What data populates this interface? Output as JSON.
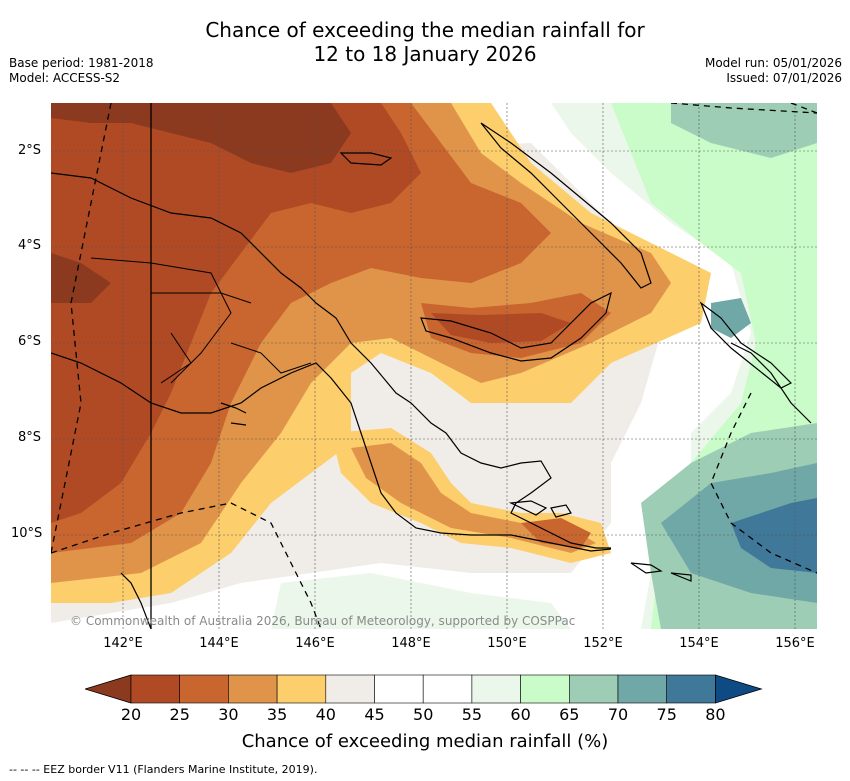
{
  "title": {
    "line1": "Chance of exceeding the median rainfall for",
    "line2": "12 to 18 January 2026"
  },
  "meta": {
    "base_period": "Base period: 1981-2018",
    "model": "Model: ACCESS-S2",
    "model_run": "Model run: 05/01/2026",
    "issued": "Issued: 07/01/2026"
  },
  "axes": {
    "lat_labels": [
      "2°S",
      "4°S",
      "6°S",
      "8°S",
      "10°S"
    ],
    "lon_labels": [
      "142°E",
      "144°E",
      "146°E",
      "148°E",
      "150°E",
      "152°E",
      "154°E",
      "156°E"
    ]
  },
  "copyright": "© Commonwealth of Australia 2026, Bureau of Meteorology, supported by COSPPac",
  "colorbar": {
    "ticks": [
      "20",
      "25",
      "30",
      "35",
      "40",
      "45",
      "50",
      "55",
      "60",
      "65",
      "70",
      "75",
      "80"
    ],
    "colors": [
      "#8b3a1f",
      "#b04a25",
      "#c9652f",
      "#e0944a",
      "#fdce6c",
      "#f0ede8",
      "#ffffff",
      "#ffffff",
      "#ebf7ea",
      "#c9fcc9",
      "#9dcdb4",
      "#70a8a8",
      "#3f7898",
      "#0e4b85"
    ],
    "label": "Chance of exceeding median rainfall (%)"
  },
  "footer": {
    "eez_legend": "--  --  -- EEZ border V11 (Flanders Marine Institute, 2019)."
  }
}
